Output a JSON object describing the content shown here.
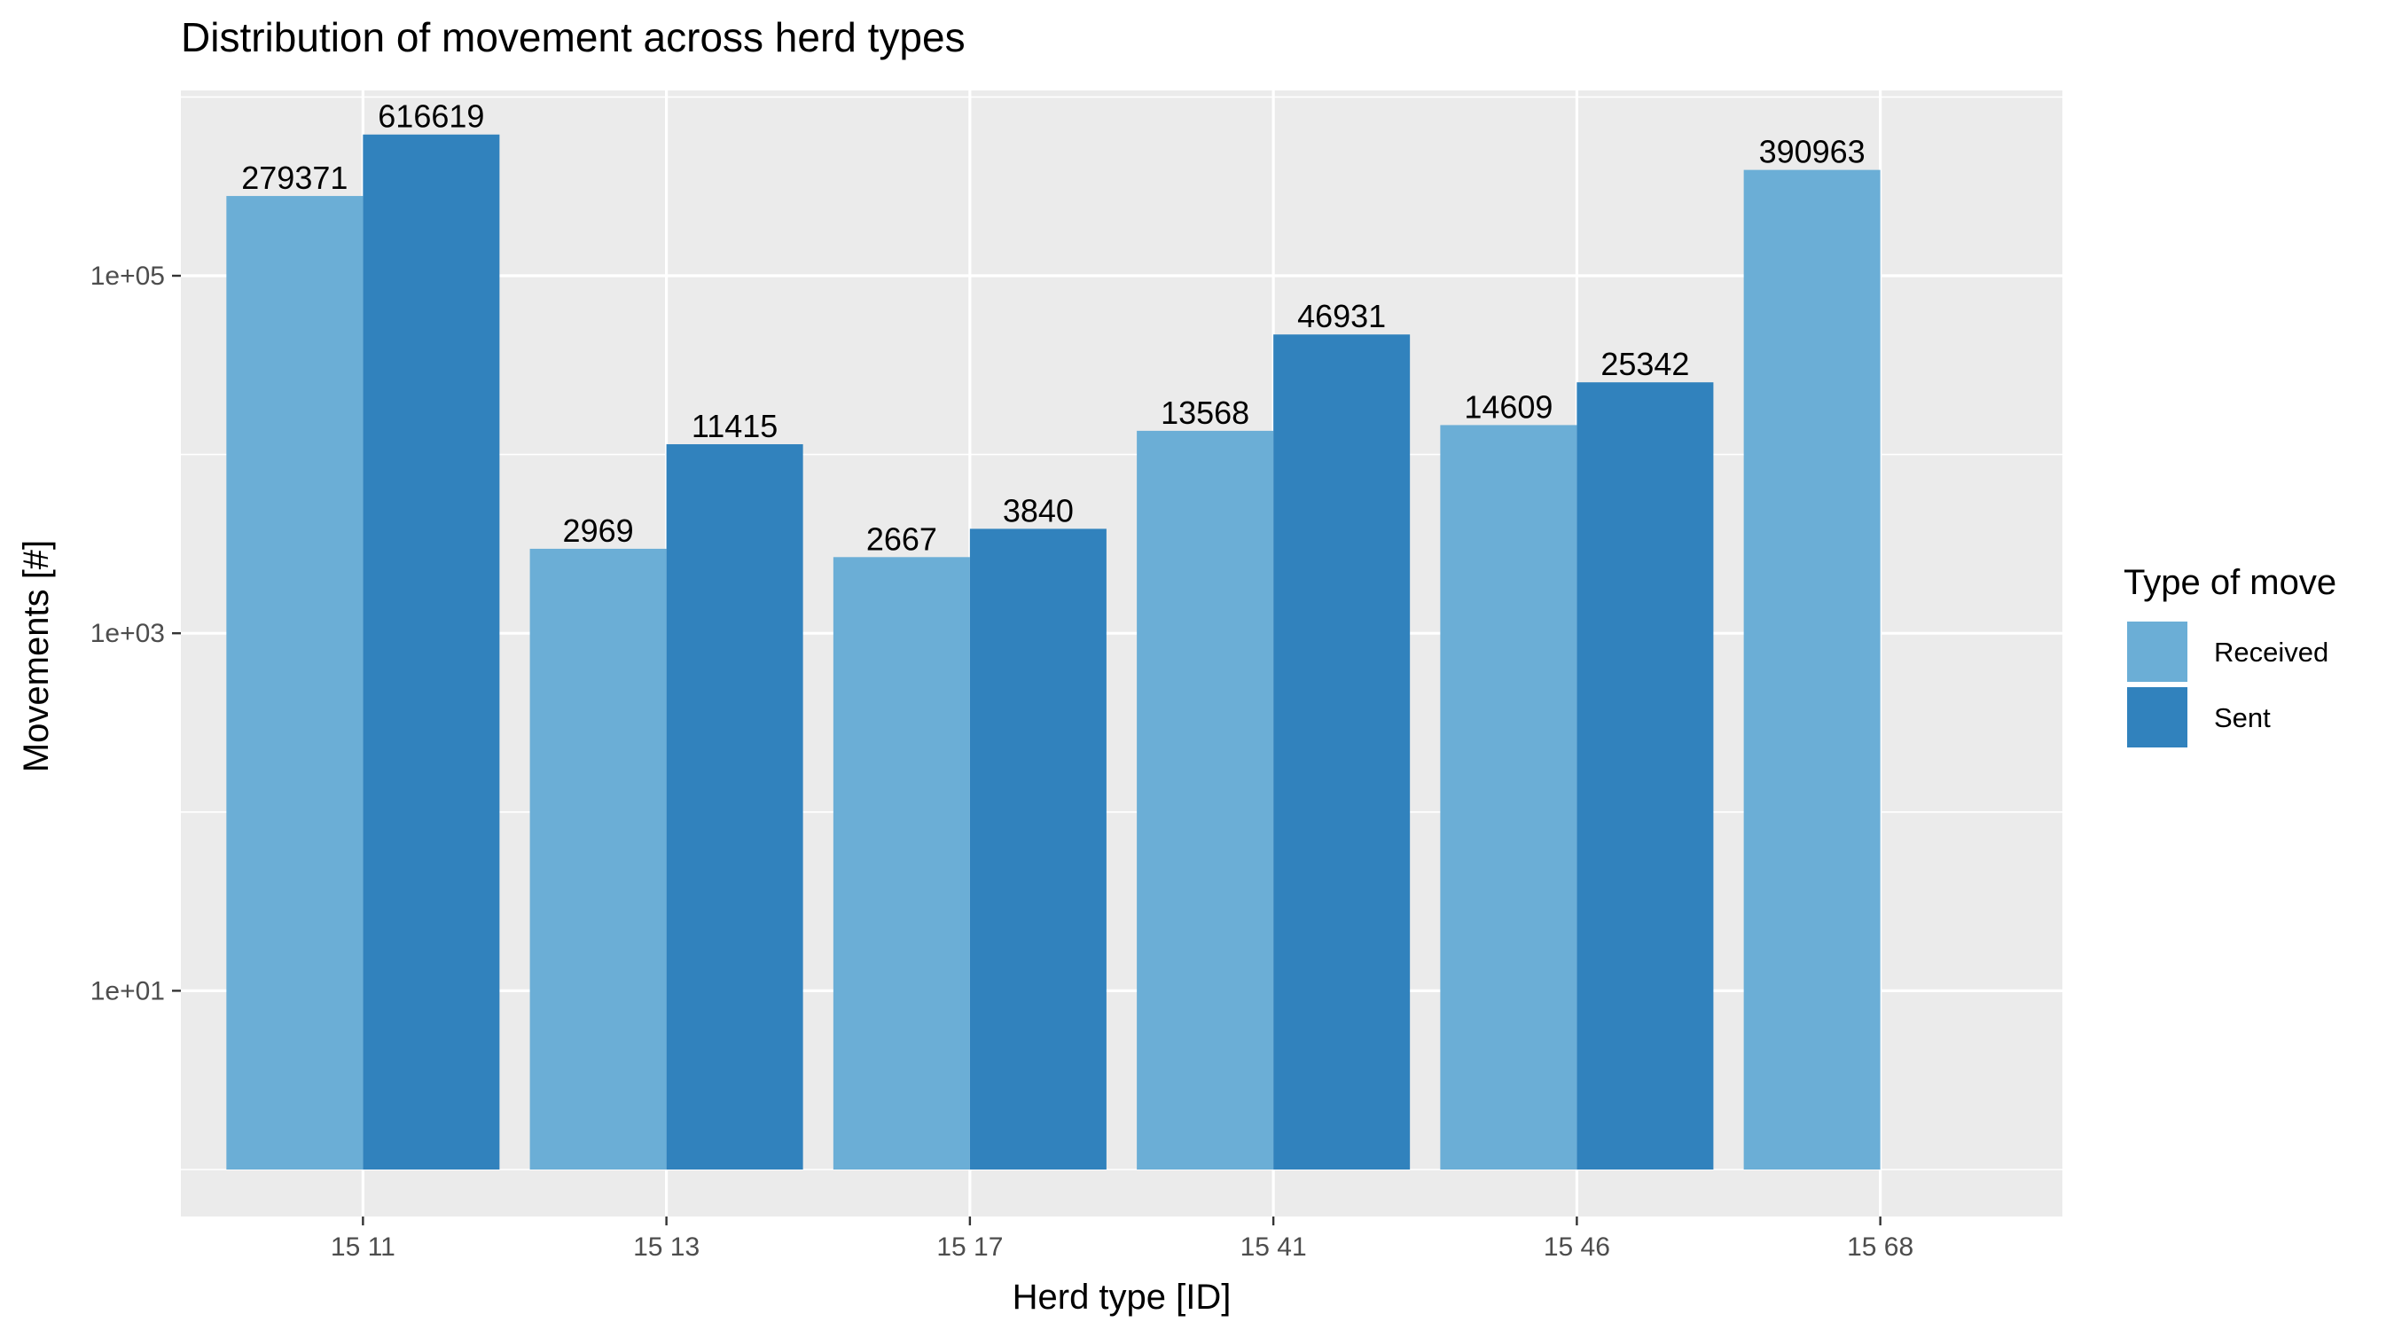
{
  "chart_data": {
    "type": "bar",
    "title": "Distribution of movement across herd types",
    "xlabel": "Herd type [ID]",
    "ylabel": "Movements [#]",
    "y_scale": "log10",
    "ylim": [
      1,
      1000000
    ],
    "y_ticks": [
      10,
      1000,
      100000
    ],
    "y_tick_labels": [
      "1e+01",
      "1e+03",
      "1e+05"
    ],
    "categories": [
      "15 11",
      "15 13",
      "15 17",
      "15 41",
      "15 46",
      "15 68"
    ],
    "series": [
      {
        "name": "Received",
        "color": "#6baed6",
        "values": [
          279371,
          2969,
          2667,
          13568,
          14609,
          390963
        ]
      },
      {
        "name": "Sent",
        "color": "#3182bd",
        "values": [
          616619,
          11415,
          3840,
          46931,
          25342,
          null
        ]
      }
    ],
    "legend": {
      "title": "Type of move",
      "position": "right"
    },
    "grid": true,
    "panel_background": "#ebebeb"
  }
}
